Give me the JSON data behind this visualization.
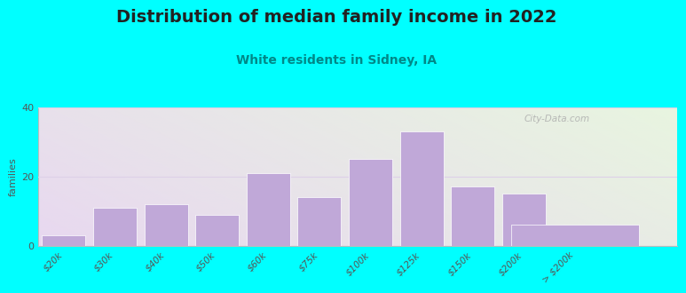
{
  "title": "Distribution of median family income in 2022",
  "subtitle": "White residents in Sidney, IA",
  "ylabel": "families",
  "categories": [
    "$20k",
    "$30k",
    "$40k",
    "$50k",
    "$60k",
    "$75k",
    "$100k",
    "$125k",
    "$150k",
    "$200k",
    "> $200k"
  ],
  "values": [
    3,
    11,
    12,
    9,
    21,
    14,
    25,
    33,
    17,
    15,
    6
  ],
  "bar_color": "#c0a8d8",
  "bar_edgecolor": "#ffffff",
  "background_outer": "#00ffff",
  "plot_bg_top_left": "#e8f5e0",
  "plot_bg_bottom_right": "#e8d8f0",
  "title_fontsize": 14,
  "subtitle_fontsize": 10,
  "ylabel_fontsize": 8,
  "tick_fontsize": 7.5,
  "ylim": [
    0,
    40
  ],
  "yticks": [
    0,
    20,
    40
  ],
  "watermark_text": "City-Data.com",
  "grid_color": "#ddd0e8",
  "title_color": "#222222",
  "subtitle_color": "#008888"
}
